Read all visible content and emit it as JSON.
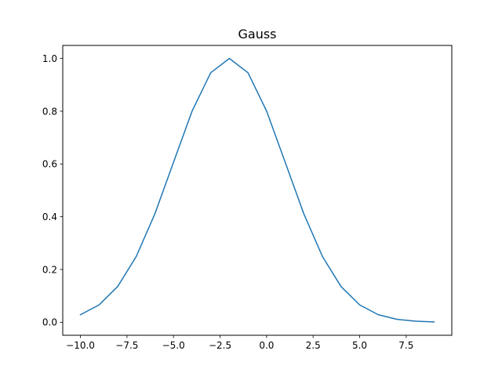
{
  "chart_data": {
    "type": "line",
    "title": "Gauss",
    "xlabel": "",
    "ylabel": "",
    "xlim": [
      -10.95,
      9.95
    ],
    "ylim": [
      -0.0494,
      1.0494
    ],
    "x_ticks": [
      -10.0,
      -7.5,
      -5.0,
      -2.5,
      0.0,
      2.5,
      5.0,
      7.5
    ],
    "x_tick_labels": [
      "−10.0",
      "−7.5",
      "−5.0",
      "−2.5",
      "0.0",
      "2.5",
      "5.0",
      "7.5"
    ],
    "y_ticks": [
      0.0,
      0.2,
      0.4,
      0.6,
      0.8,
      1.0
    ],
    "y_tick_labels": [
      "0.0",
      "0.2",
      "0.4",
      "0.6",
      "0.8",
      "1.0"
    ],
    "grid": false,
    "legend": "none",
    "color": "#1f77b4",
    "series": [
      {
        "x": [
          -10,
          -9,
          -8,
          -7,
          -6,
          -5,
          -4,
          -3,
          -2,
          -1,
          0,
          1,
          2,
          3,
          4,
          5,
          6,
          7,
          8,
          9
        ],
        "y": [
          0.0286,
          0.0657,
          0.1353,
          0.2494,
          0.4111,
          0.6065,
          0.8007,
          0.946,
          1.0,
          0.946,
          0.8007,
          0.6065,
          0.4111,
          0.2494,
          0.1353,
          0.0657,
          0.0286,
          0.0111,
          0.0039,
          0.0012
        ]
      }
    ]
  }
}
